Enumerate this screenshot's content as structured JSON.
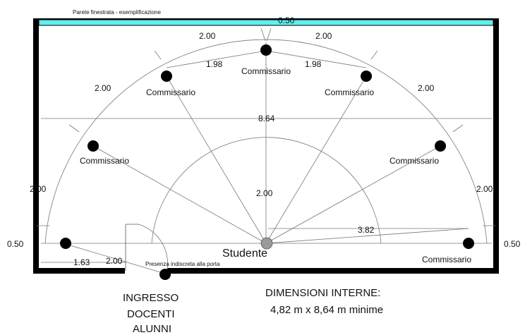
{
  "title": "Parete finestrata - esemplificazione",
  "window_width": "0.50",
  "room_width": "8.64",
  "arc_spacing": [
    "2.00",
    "2.00",
    "2.00",
    "2.00",
    "2.00",
    "2.00"
  ],
  "chord_spacing": [
    "1.98",
    "1.98"
  ],
  "inner_radius": "2.00",
  "radius_outer": "3.82",
  "left_offset": "0.50",
  "right_offset": "0.50",
  "left_bottom_dim": "1.63",
  "door_dim": "2.00",
  "commissario_label": "Commissario",
  "student_label": "Studente",
  "door_presence_note": "Presenza indiscreta alla porta",
  "entrance": [
    "INGRESSO",
    "DOCENTI",
    "ALUNNI"
  ],
  "dimensions_title": "DIMENSIONI INTERNE:",
  "dimensions_value": "4,82 m x 8,64 m minime",
  "colors": {
    "window": "#5ff0ef",
    "wall": "#000000",
    "line": "#777777",
    "student": "#9a9a9a"
  }
}
